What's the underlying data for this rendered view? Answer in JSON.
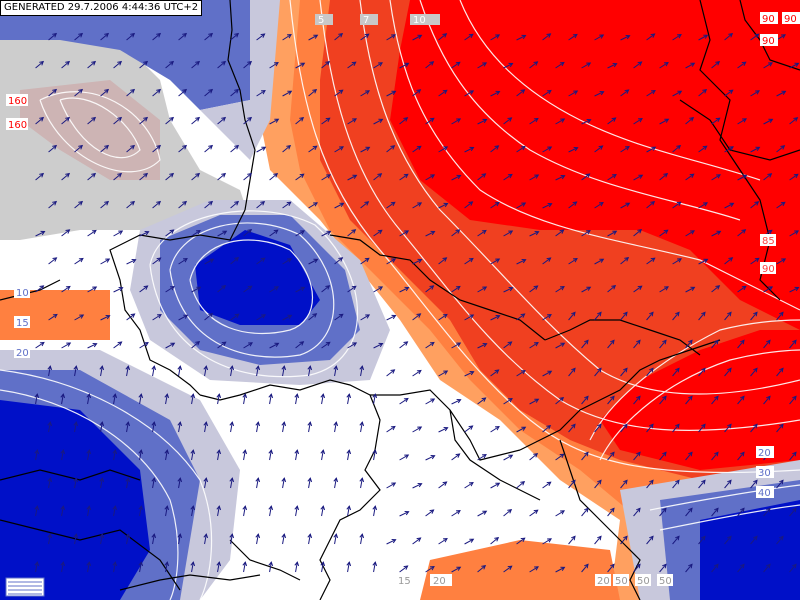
{
  "header": {
    "generated_label": "GENERATED 29.7.2006 4:44:36 UTC+2"
  },
  "map": {
    "projection_colors": {
      "positive_strong": "#ff0000",
      "positive_mid": "#f04020",
      "positive_low": "#ff8040",
      "positive_edge": "#ffa060",
      "neutral": "#ffffff",
      "negative_low": "#c8c8dc",
      "negative_mid": "#6070c8",
      "negative_strong": "#0010c8",
      "missing": "#c8c8c8",
      "border": "#000000",
      "contour": "#ffffff",
      "arrow": "#1a1a80"
    },
    "contour_labels": [
      "5",
      "7",
      "10",
      "15",
      "20",
      "20",
      "50",
      "50",
      "50",
      "90",
      "90",
      "90",
      "85",
      "90",
      "10",
      "15",
      "20",
      "160",
      "160",
      "40",
      "30",
      "20"
    ]
  }
}
